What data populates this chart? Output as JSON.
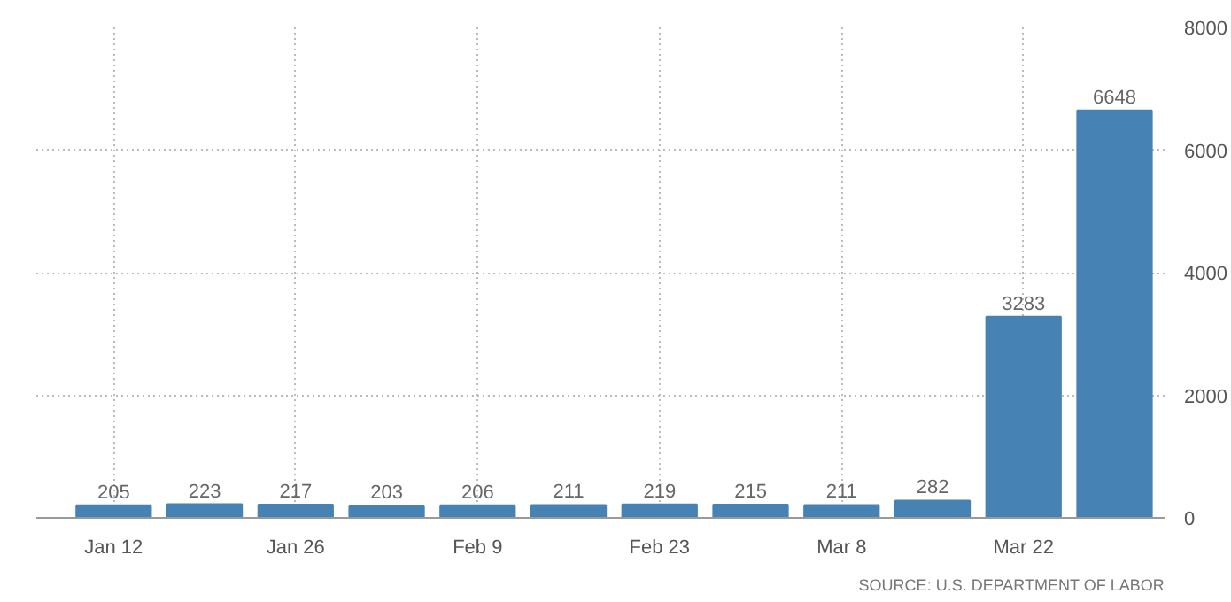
{
  "chart_data": {
    "type": "bar",
    "categories": [
      "Jan 12",
      null,
      "Jan 26",
      null,
      "Feb 9",
      null,
      "Feb 23",
      null,
      "Mar 8",
      null,
      "Mar 22",
      null
    ],
    "values": [
      205,
      223,
      217,
      203,
      206,
      211,
      219,
      215,
      211,
      282,
      3283,
      6648
    ],
    "color": "#4682b4",
    "ylim": [
      0,
      8000
    ],
    "yticks": [
      0,
      2000,
      4000,
      6000,
      8000
    ],
    "grid": true,
    "data_labels": true,
    "annotations": [
      "SOURCE: U.S. DEPARTMENT OF LABOR"
    ]
  }
}
